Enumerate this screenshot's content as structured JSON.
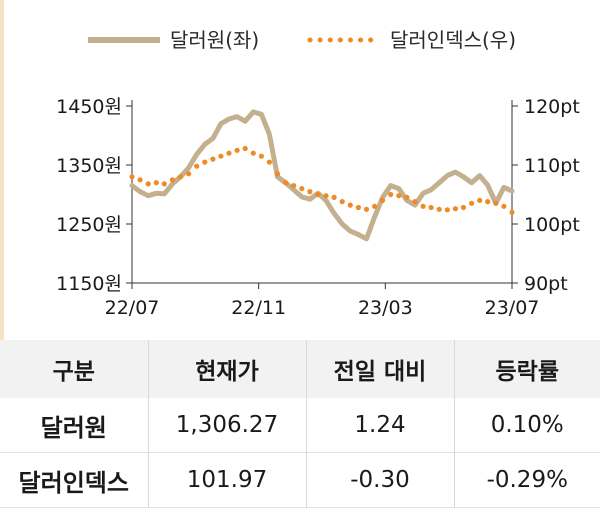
{
  "chart_data": {
    "type": "line",
    "x_ticks": [
      "22/07",
      "22/11",
      "23/03",
      "23/07"
    ],
    "y_left": {
      "ticks": [
        "1450원",
        "1350원",
        "1250원",
        "1150원"
      ],
      "ylim": [
        1150,
        1450
      ]
    },
    "y_right": {
      "ticks": [
        "120pt",
        "110pt",
        "100pt",
        "90pt"
      ],
      "ylim": [
        90,
        120
      ]
    },
    "grid": false,
    "legend_position": "top",
    "series": [
      {
        "name": "달러원(좌)",
        "axis": "left",
        "style": "solid",
        "color": "#c4b08e",
        "values": [
          1315,
          1305,
          1298,
          1302,
          1301,
          1318,
          1330,
          1345,
          1368,
          1385,
          1395,
          1420,
          1428,
          1432,
          1424,
          1440,
          1436,
          1402,
          1330,
          1320,
          1308,
          1296,
          1292,
          1302,
          1290,
          1268,
          1250,
          1238,
          1232,
          1225,
          1262,
          1295,
          1315,
          1310,
          1290,
          1282,
          1302,
          1308,
          1320,
          1332,
          1338,
          1330,
          1320,
          1332,
          1316,
          1285,
          1312,
          1306
        ]
      },
      {
        "name": "달러인덱스(우)",
        "axis": "right",
        "style": "dotted",
        "color": "#f08a24",
        "values": [
          108.0,
          107.5,
          106.8,
          107.0,
          106.8,
          107.5,
          108.0,
          108.5,
          109.8,
          110.5,
          111.0,
          111.5,
          112.0,
          112.5,
          112.8,
          112.0,
          111.5,
          110.5,
          108.5,
          107.0,
          106.5,
          106.0,
          105.5,
          105.0,
          104.8,
          104.5,
          103.8,
          103.2,
          102.8,
          102.5,
          103.0,
          104.0,
          105.0,
          104.8,
          104.5,
          103.8,
          103.0,
          102.8,
          102.5,
          102.4,
          102.6,
          102.8,
          103.5,
          104.0,
          103.8,
          103.5,
          103.0,
          101.97
        ]
      }
    ]
  },
  "table": {
    "headers": [
      "구분",
      "현재가",
      "전일 대비",
      "등락률"
    ],
    "rows": [
      [
        "달러원",
        "1,306.27",
        "1.24",
        "0.10%"
      ],
      [
        "달러인덱스",
        "101.97",
        "-0.30",
        "-0.29%"
      ]
    ]
  }
}
